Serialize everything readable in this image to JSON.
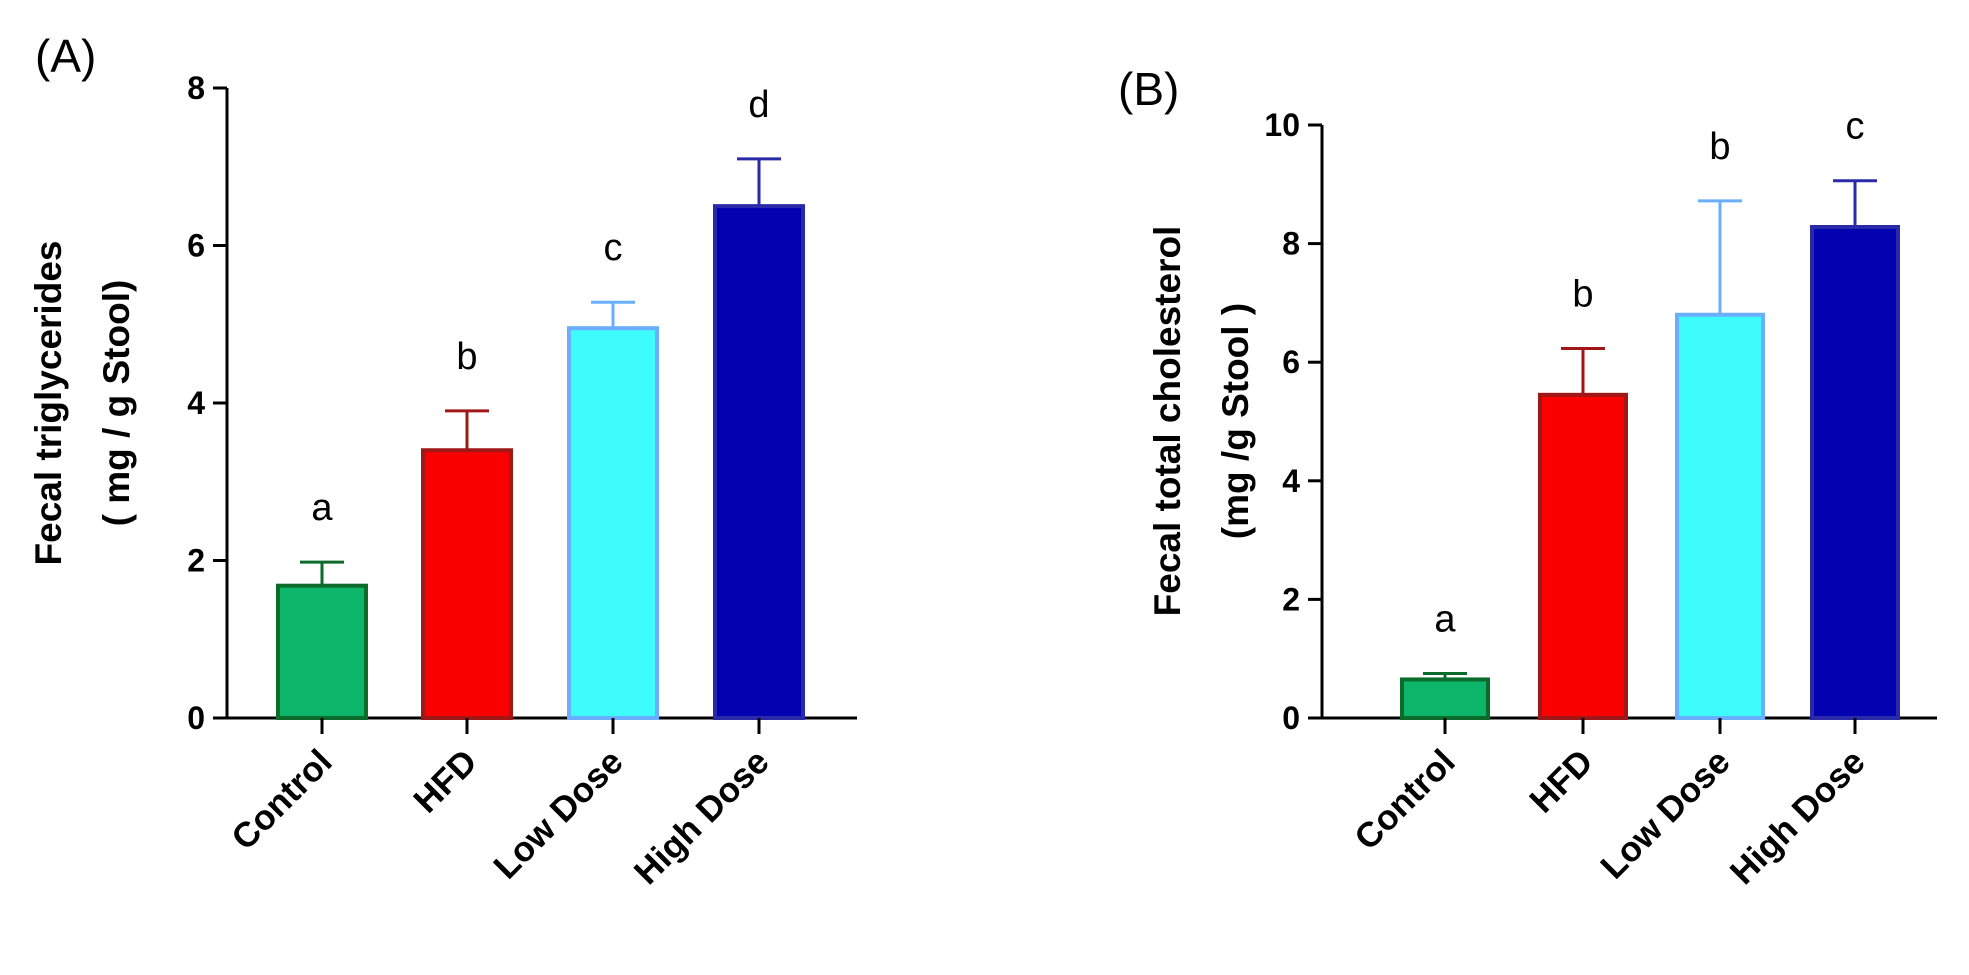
{
  "chart_data": [
    {
      "panel": "(A)",
      "type": "bar",
      "categories": [
        "Control",
        "HFD",
        "Low Dose",
        "High Dose"
      ],
      "values": [
        1.68,
        3.4,
        4.95,
        6.5
      ],
      "errors": [
        0.3,
        0.5,
        0.33,
        0.6
      ],
      "letters": [
        "a",
        "b",
        "c",
        "d"
      ],
      "ylabel_lines": [
        "Fecal triglycerides",
        "( mg / g Stool)"
      ],
      "ylim": [
        0,
        8
      ],
      "yticks": [
        "0",
        "2",
        "4",
        "6",
        "8"
      ],
      "colors": {
        "fills": [
          "#0db56b",
          "#fa0000",
          "#3ffcfc",
          "#0202b0"
        ],
        "strokes": [
          "#0a6b2a",
          "#a01717",
          "#6aaeff",
          "#2a2aa8"
        ]
      }
    },
    {
      "panel": "(B)",
      "type": "bar",
      "categories": [
        "Control",
        "HFD",
        "Low Dose",
        "High Dose"
      ],
      "values": [
        0.65,
        5.45,
        6.8,
        8.28
      ],
      "errors": [
        0.1,
        0.78,
        1.92,
        0.78
      ],
      "letters": [
        "a",
        "b",
        "b",
        "c"
      ],
      "ylabel_lines": [
        "Fecal total cholesterol",
        "(mg /g Stool )"
      ],
      "ylim": [
        0,
        10
      ],
      "yticks": [
        "0",
        "2",
        "4",
        "6",
        "8",
        "10"
      ],
      "colors": {
        "fills": [
          "#0db56b",
          "#fa0000",
          "#3ffcfc",
          "#0202b0"
        ],
        "strokes": [
          "#0a6b2a",
          "#a01717",
          "#6aaeff",
          "#2a2aa8"
        ]
      }
    }
  ]
}
